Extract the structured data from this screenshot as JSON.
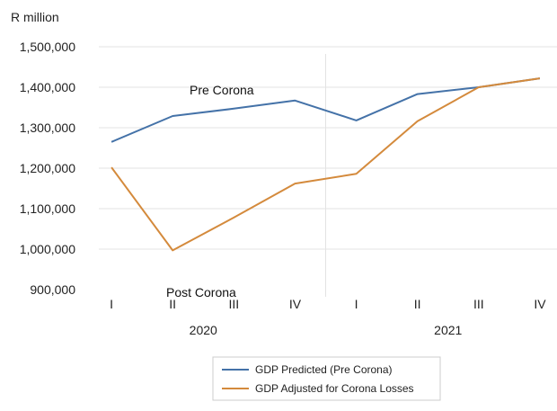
{
  "chart_data": {
    "type": "line",
    "ylabel": "R million",
    "categories": [
      "I",
      "II",
      "III",
      "IV",
      "I",
      "II",
      "III",
      "IV"
    ],
    "groups": [
      {
        "label": "2020",
        "from": 0,
        "to": 3
      },
      {
        "label": "2021",
        "from": 4,
        "to": 7
      }
    ],
    "ylim": [
      900000,
      1500000
    ],
    "yticks": [
      900000,
      1000000,
      1100000,
      1200000,
      1300000,
      1400000,
      1500000
    ],
    "ytick_labels": [
      "900,000",
      "1,000,000",
      "1,100,000",
      "1,200,000",
      "1,300,000",
      "1,400,000",
      "1,500,000"
    ],
    "grid": true,
    "legend": "bottom",
    "series": [
      {
        "name": "GDP Predicted (Pre Corona)",
        "color": "#4472a8",
        "values": [
          1265000,
          1329000,
          1347000,
          1367000,
          1318000,
          1383000,
          1400000,
          1422000
        ]
      },
      {
        "name": "GDP Adjusted for Corona Losses",
        "color": "#d48a3c",
        "values": [
          1202000,
          997000,
          1078000,
          1162000,
          1186000,
          1316000,
          1400000,
          1422000
        ]
      }
    ],
    "annotations": [
      {
        "text": "Pre Corona",
        "series": 0,
        "x": 2
      },
      {
        "text": "Post Corona",
        "series": 1,
        "x": 2
      }
    ]
  }
}
